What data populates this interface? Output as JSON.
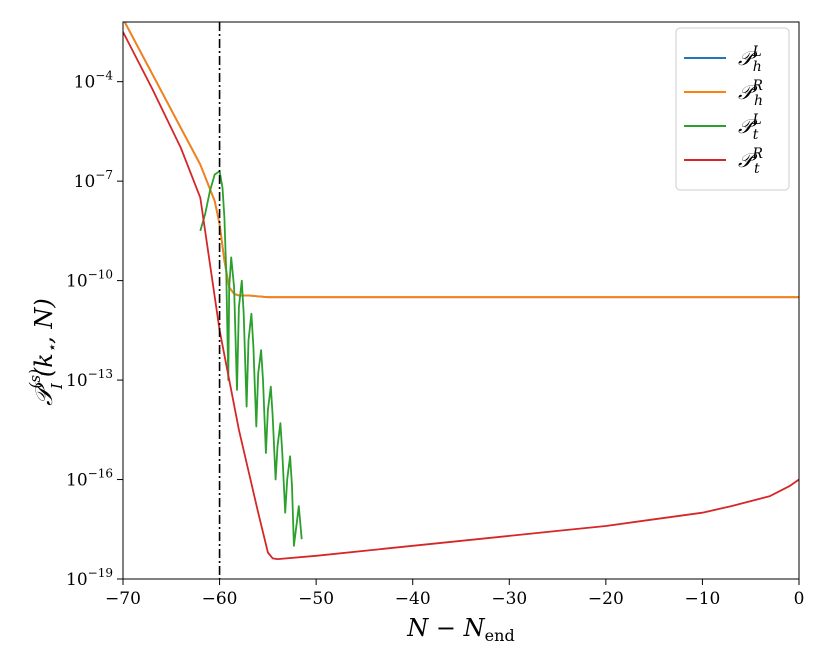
{
  "chart_data": {
    "type": "line",
    "xlabel": "N − N_end",
    "ylabel": "𝒫_I^(s)(k⋆, N)",
    "xlim": [
      -70,
      0
    ],
    "ylim_log10": [
      -19,
      -2.2
    ],
    "yscale": "log",
    "xticks": [
      -70,
      -60,
      -50,
      -40,
      -30,
      -20,
      -10,
      0
    ],
    "xtick_labels": [
      "−70",
      "−60",
      "−50",
      "−40",
      "−30",
      "−20",
      "−10",
      "0"
    ],
    "yticks_log10": [
      -19,
      -16,
      -13,
      -10,
      -7,
      -4
    ],
    "ytick_labels": [
      "10",
      "10",
      "10",
      "10",
      "10",
      "10"
    ],
    "ytick_exponents": [
      "−19",
      "−16",
      "−13",
      "−10",
      "−7",
      "−4"
    ],
    "vline": {
      "x": -60,
      "style": "dash-dot",
      "color": "#000000"
    },
    "legend": {
      "placement": "top-right"
    },
    "series": [
      {
        "name": "𝒫_h^L",
        "color": "#1f77b4",
        "x": [
          -70,
          -68,
          -66,
          -64,
          -62,
          -60.5,
          -60,
          -59.5,
          -59,
          -58.5,
          -58,
          -57,
          -55,
          -50,
          -40,
          -30,
          -20,
          -10,
          0
        ],
        "y_log10": [
          -2.1,
          -3.2,
          -4.3,
          -5.4,
          -6.5,
          -7.6,
          -8.3,
          -9.4,
          -10.2,
          -10.4,
          -10.45,
          -10.45,
          -10.5,
          -10.5,
          -10.5,
          -10.5,
          -10.5,
          -10.5,
          -10.5
        ]
      },
      {
        "name": "𝒫_h^R",
        "color": "#ff7f0e",
        "x": [
          -70,
          -68,
          -66,
          -64,
          -62,
          -60.5,
          -60,
          -59.5,
          -59,
          -58.5,
          -58,
          -57,
          -55,
          -50,
          -40,
          -30,
          -20,
          -10,
          0
        ],
        "y_log10": [
          -2.1,
          -3.2,
          -4.3,
          -5.4,
          -6.5,
          -7.6,
          -8.3,
          -9.4,
          -10.2,
          -10.4,
          -10.45,
          -10.45,
          -10.5,
          -10.5,
          -10.5,
          -10.5,
          -10.5,
          -10.5,
          -10.5
        ]
      },
      {
        "name": "𝒫_t^L",
        "color": "#2ca02c",
        "x": [
          -62,
          -61.5,
          -61,
          -60.5,
          -60,
          -59.7,
          -59.5,
          -59.3,
          -59.1,
          -59.0,
          -58.8,
          -58.5,
          -58.2,
          -58.0,
          -57.7,
          -57.5,
          -57.2,
          -57.0,
          -56.7,
          -56.5,
          -56.2,
          -56.0,
          -55.7,
          -55.5,
          -55.2,
          -55.0,
          -54.7,
          -54.5,
          -54.2,
          -54.0,
          -53.7,
          -53.5,
          -53.2,
          -53.0,
          -52.7,
          -52.5,
          -52.3,
          -52.0,
          -51.8,
          -51.5
        ],
        "y_log10": [
          -8.5,
          -8.0,
          -7.3,
          -6.8,
          -6.7,
          -7.2,
          -8.1,
          -9.8,
          -13.0,
          -10.2,
          -9.3,
          -10.2,
          -13.3,
          -10.8,
          -10.0,
          -11.0,
          -13.8,
          -11.8,
          -11.0,
          -12.0,
          -14.4,
          -12.8,
          -12.1,
          -13.0,
          -15.2,
          -13.9,
          -13.2,
          -14.1,
          -16.0,
          -15.0,
          -14.3,
          -15.2,
          -17.0,
          -16.0,
          -15.3,
          -16.2,
          -18.0,
          -17.3,
          -16.8,
          -17.8
        ]
      },
      {
        "name": "𝒫_t^R",
        "color": "#d62728",
        "x": [
          -70,
          -67,
          -64,
          -62,
          -60,
          -58,
          -56,
          -55,
          -54.5,
          -54,
          -50,
          -40,
          -30,
          -25,
          -20,
          -15,
          -10,
          -7,
          -5,
          -3,
          -1,
          0
        ],
        "y_log10": [
          -2.5,
          -4.2,
          -6.0,
          -7.5,
          -11.5,
          -14.5,
          -17.0,
          -18.2,
          -18.38,
          -18.4,
          -18.3,
          -18.0,
          -17.7,
          -17.55,
          -17.4,
          -17.2,
          -17.0,
          -16.8,
          -16.65,
          -16.5,
          -16.2,
          -16.0
        ]
      }
    ]
  }
}
